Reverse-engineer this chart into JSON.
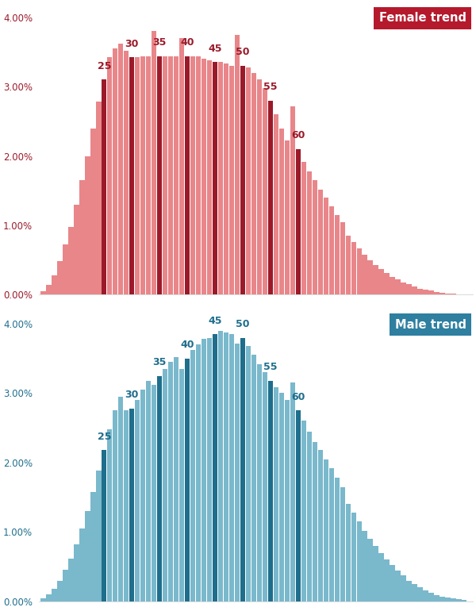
{
  "female_color_light": "#e8868a",
  "female_color_dark": "#9b1a2a",
  "male_color_light": "#7ab8cc",
  "male_color_dark": "#1e6e8c",
  "female_label": "Female trend",
  "male_label": "Male trend",
  "female_label_bg": "#b5192c",
  "male_label_bg": "#2e7fa0",
  "highlight_ages": [
    25,
    30,
    35,
    40,
    45,
    50,
    55,
    60
  ],
  "age_start": 14,
  "ylim": 0.042,
  "yticks": [
    0.0,
    0.01,
    0.02,
    0.03,
    0.04
  ],
  "female_values": [
    0.05,
    0.14,
    0.28,
    0.48,
    0.72,
    0.98,
    1.3,
    1.65,
    2.0,
    2.4,
    2.78,
    3.1,
    3.42,
    3.55,
    3.62,
    3.52,
    3.42,
    3.42,
    3.44,
    3.44,
    3.8,
    3.44,
    3.44,
    3.44,
    3.44,
    3.7,
    3.44,
    3.44,
    3.44,
    3.4,
    3.38,
    3.35,
    3.35,
    3.33,
    3.3,
    3.75,
    3.3,
    3.28,
    3.2,
    3.1,
    2.98,
    2.8,
    2.6,
    2.4,
    2.22,
    2.72,
    2.1,
    1.92,
    1.78,
    1.65,
    1.52,
    1.4,
    1.28,
    1.15,
    1.05,
    0.85,
    0.76,
    0.67,
    0.58,
    0.5,
    0.43,
    0.37,
    0.31,
    0.26,
    0.22,
    0.18,
    0.15,
    0.12,
    0.09,
    0.07,
    0.06,
    0.04,
    0.03,
    0.02,
    0.015,
    0.01,
    0.008
  ],
  "male_values": [
    0.04,
    0.1,
    0.18,
    0.3,
    0.45,
    0.62,
    0.82,
    1.05,
    1.3,
    1.58,
    1.88,
    2.18,
    2.48,
    2.75,
    2.95,
    2.75,
    2.78,
    2.9,
    3.05,
    3.18,
    3.12,
    3.25,
    3.35,
    3.45,
    3.52,
    3.35,
    3.5,
    3.62,
    3.7,
    3.78,
    3.8,
    3.85,
    3.9,
    3.88,
    3.85,
    3.72,
    3.8,
    3.68,
    3.55,
    3.42,
    3.3,
    3.18,
    3.08,
    3.0,
    2.9,
    3.15,
    2.75,
    2.6,
    2.45,
    2.3,
    2.18,
    2.05,
    1.92,
    1.78,
    1.65,
    1.4,
    1.28,
    1.15,
    1.02,
    0.9,
    0.8,
    0.7,
    0.6,
    0.52,
    0.44,
    0.37,
    0.3,
    0.25,
    0.2,
    0.16,
    0.12,
    0.09,
    0.07,
    0.05,
    0.04,
    0.03,
    0.02
  ]
}
